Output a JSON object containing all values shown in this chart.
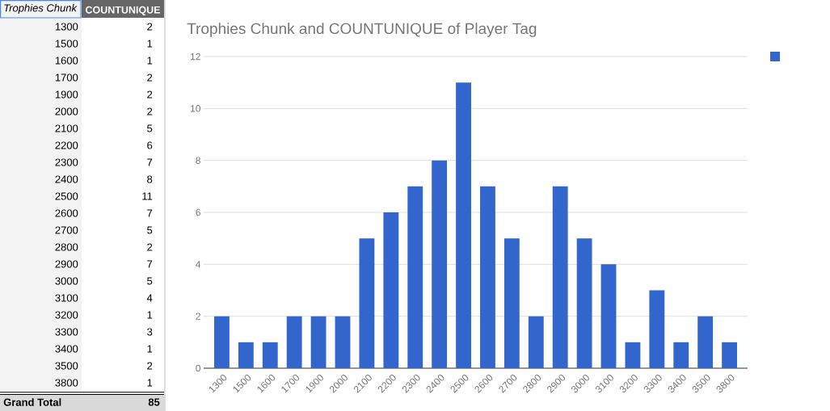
{
  "chart_data": [
    {
      "type": "heatmap",
      "categories": [
        "COUNTUNIQUE"
      ],
      "y_categories": [
        "1300",
        "1500",
        "1600",
        "1700",
        "1900",
        "2000",
        "2100",
        "2200",
        "2300",
        "2400",
        "2500",
        "2600",
        "2700",
        "2800",
        "2900",
        "3000",
        "3100",
        "3200",
        "3300",
        "3400",
        "3500",
        "3800"
      ],
      "cells": [
        [
          2
        ],
        [
          1
        ],
        [
          1
        ],
        [
          2
        ],
        [
          2
        ],
        [
          2
        ],
        [
          5
        ],
        [
          6
        ],
        [
          7
        ],
        [
          8
        ],
        [
          11
        ],
        [
          7
        ],
        [
          5
        ],
        [
          2
        ],
        [
          7
        ],
        [
          5
        ],
        [
          4
        ],
        [
          1
        ],
        [
          3
        ],
        [
          1
        ],
        [
          2
        ],
        [
          1
        ]
      ],
      "data_labels": true,
      "annotations": [
        "Trophies Chunk",
        "Grand Total",
        "85"
      ]
    },
    {
      "type": "bar",
      "title": "Trophies Chunk and COUNTUNIQUE of Player Tag",
      "categories": [
        "1300",
        "1500",
        "1600",
        "1700",
        "1900",
        "2000",
        "2100",
        "2200",
        "2300",
        "2400",
        "2500",
        "2600",
        "2700",
        "2800",
        "2900",
        "3000",
        "3100",
        "3200",
        "3300",
        "3400",
        "3500",
        "3800"
      ],
      "values": [
        2,
        1,
        1,
        2,
        2,
        2,
        5,
        6,
        7,
        8,
        11,
        7,
        5,
        2,
        7,
        5,
        4,
        1,
        3,
        1,
        2,
        1
      ],
      "color": "#3366cc",
      "ylim": [
        0,
        12
      ],
      "yticks": [
        0,
        2,
        4,
        6,
        8,
        10,
        12
      ],
      "grid": "y"
    }
  ]
}
